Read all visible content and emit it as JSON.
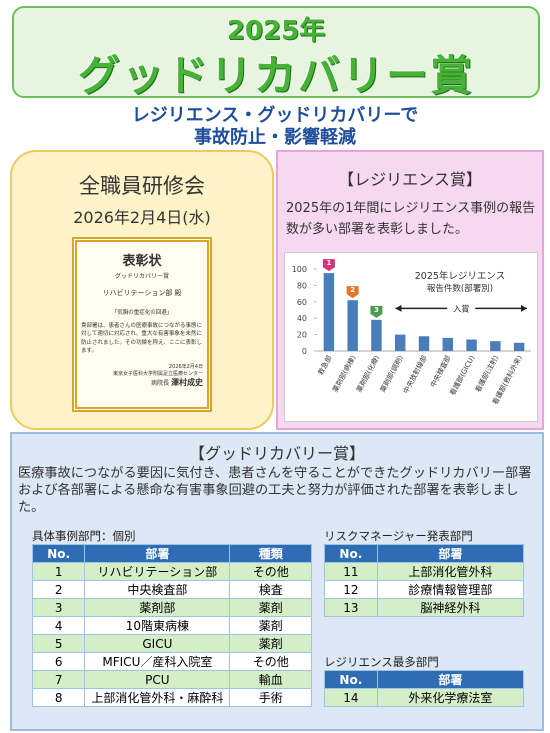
{
  "header": {
    "year": "2025年",
    "title": "グッドリカバリー賞"
  },
  "subtitle": [
    "レジリエンス・グッドリカバリーで",
    "事故防止・影響軽減"
  ],
  "training": {
    "title": "全職員研修会",
    "date": "2026年2月4日(水)",
    "certificate": {
      "heading": "表彰状",
      "award": "グッドリカバリー賞",
      "recipient": "リハビリテーション部 殿",
      "case": "「気胸の重症化の回避」",
      "body": "貴部署は、患者さんの医療事故につながる事態に対して適切に対応され、重大な有害事象を未然に防止されました。その功績を称え、ここに表彰します。",
      "date": "2026年2月4日",
      "org": "東京女子医科大学附属足立医療センター",
      "signer_title": "病院長",
      "signer": "澤村成史"
    }
  },
  "resilience": {
    "title": "【レジリエンス賞】",
    "text": "2025年の1年間にレジリエンス事例の報告数が多い部署を表彰しました。",
    "chart": {
      "type": "bar",
      "title": [
        "2025年レジリエンス",
        "報告件数(部署別)"
      ],
      "categories": [
        "救急部",
        "薬剤部(病棟)",
        "薬剤部(化療)",
        "薬剤部(調剤)",
        "中央放射線部",
        "中央検査部",
        "看護部(GICU)",
        "看護部(注射)",
        "看護部(救科外来)"
      ],
      "values": [
        95,
        62,
        38,
        20,
        18,
        16,
        14,
        12,
        10
      ],
      "color": "#4a7ebb",
      "ylim": [
        0,
        100
      ],
      "yticks": [
        0,
        20,
        40,
        60,
        80,
        100
      ],
      "rank_labels": [
        "1",
        "2",
        "3"
      ],
      "annotation": "入賞"
    }
  },
  "good_recovery": {
    "title": "【グッドリカバリー賞】",
    "text": "医療事故につながる要因に気付き、患者さんを守ることができたグッドリカバリー部署および各部署による懸命な有害事象回避の工夫と努力が評価された部署を表彰しました。",
    "individual": {
      "caption": "具体事例部門：個別",
      "columns": [
        "No.",
        "部署",
        "種類"
      ],
      "rows": [
        [
          1,
          "リハビリテーション部",
          "その他"
        ],
        [
          2,
          "中央検査部",
          "検査"
        ],
        [
          3,
          "薬剤部",
          "薬剤"
        ],
        [
          4,
          "10階東病棟",
          "薬剤"
        ],
        [
          5,
          "GICU",
          "薬剤"
        ],
        [
          6,
          "MFICU／産科入院室",
          "その他"
        ],
        [
          7,
          "PCU",
          "輸血"
        ],
        [
          8,
          "上部消化管外科・麻酔科",
          "手術"
        ]
      ]
    },
    "risk_manager": {
      "caption": "リスクマネージャー発表部門",
      "columns": [
        "No.",
        "部署"
      ],
      "rows": [
        [
          11,
          "上部消化管外科"
        ],
        [
          12,
          "診療情報管理部"
        ],
        [
          13,
          "脳神経外科"
        ]
      ]
    },
    "most_resilience": {
      "caption": "レジリエンス最多部門",
      "columns": [
        "No.",
        "部署"
      ],
      "rows": [
        [
          14,
          "外来化学療法室"
        ]
      ]
    }
  }
}
